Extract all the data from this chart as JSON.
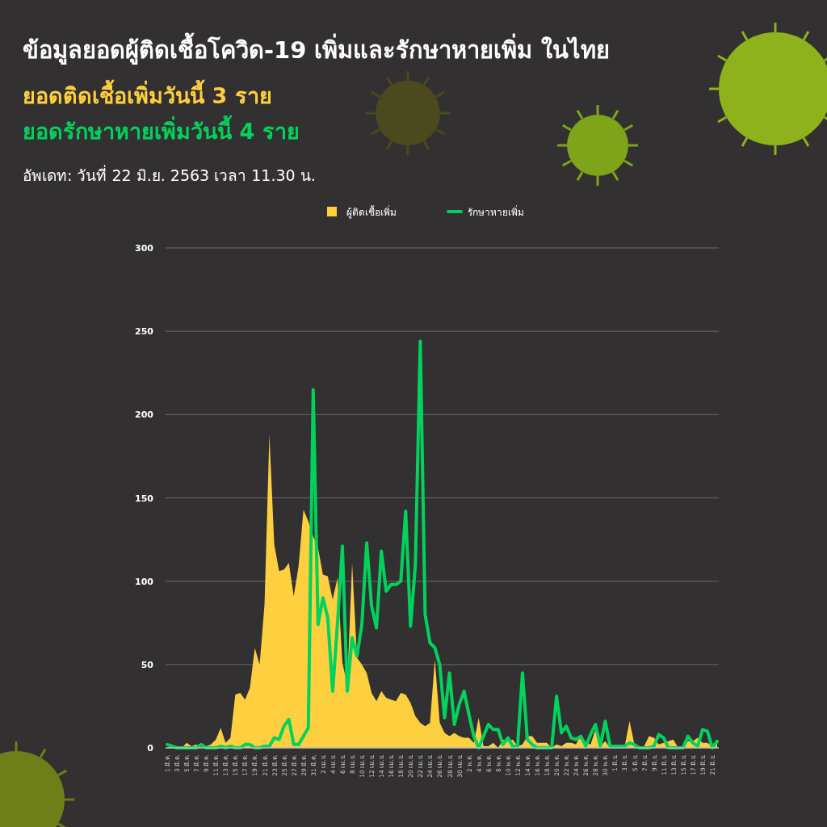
{
  "chart_data": {
    "type": "area",
    "title": "ข้อมูลยอดผู้ติดเชื้อโควิด-19 เพิ่มและรักษาหายเพิ่ม ในไทย",
    "subtitle": "ยอดติดเชื้อเพิ่มวันนี้ 3 ราย",
    "annotations": [
      "ยอดรักษาหายเพิ่มวันนี้ 4 ราย",
      "อัพเดท: วันที่ 22 มิ.ย. 2563 เวลา 11.30 น."
    ],
    "categories": [
      "1 มี.ค.",
      null,
      "3 มี.ค.",
      null,
      "5 มี.ค.",
      null,
      "7 มี.ค.",
      null,
      "9 มี.ค.",
      null,
      "11 มี.ค.",
      null,
      "13 มี.ค.",
      null,
      "15 มี.ค.",
      null,
      "17 มี.ค.",
      null,
      "19 มี.ค.",
      null,
      "21 มี.ค.",
      null,
      "23 มี.ค.",
      null,
      "25 มี.ค.",
      null,
      "27 มี.ค.",
      null,
      "29 มี.ค.",
      null,
      "31 มี.ค.",
      null,
      "2 เม.ย.",
      null,
      "4 เม.ย.",
      null,
      "6 เม.ย.",
      null,
      "8 เม.ย.",
      null,
      "10 เม.ย.",
      null,
      "12 เม.ย.",
      null,
      "14 เม.ย.",
      null,
      "16 เม.ย.",
      null,
      "18 เม.ย.",
      null,
      "20 เม.ย.",
      null,
      "22 เม.ย.",
      null,
      "24 เม.ย.",
      null,
      "26 เม.ย.",
      null,
      "28 เม.ย.",
      null,
      "30 เม.ย.",
      null,
      "2 พ.ค.",
      null,
      "4 พ.ค.",
      null,
      "6 พ.ค.",
      null,
      "8 พ.ค.",
      null,
      "10 พ.ค.",
      null,
      "12 พ.ค.",
      null,
      "14 พ.ค.",
      null,
      "16 พ.ค.",
      null,
      "18 พ.ค.",
      null,
      "20 พ.ค.",
      null,
      "22 พ.ค.",
      null,
      "24 พ.ค.",
      null,
      "26 พ.ค.",
      null,
      "28 พ.ค.",
      null,
      "30 พ.ค.",
      null,
      "1 มิ.ย.",
      null,
      "3 มิ.ย.",
      null,
      "5 มิ.ย.",
      null,
      "7 มิ.ย.",
      null,
      "9 มิ.ย.",
      null,
      "11 มิ.ย.",
      null,
      "13 มิ.ย.",
      null,
      "15 มิ.ย.",
      null,
      "17 มิ.ย.",
      null,
      "19 มิ.ย.",
      null,
      "21 มิ.ย.",
      null
    ],
    "series": [
      {
        "name": "ผู้ติดเชื้อเพิ่ม",
        "color": "#fecf3e",
        "values": [
          0,
          1,
          0,
          0,
          3,
          1,
          2,
          0,
          1,
          2,
          5,
          12,
          3,
          6,
          32,
          33,
          29,
          36,
          60,
          50,
          86,
          188,
          122,
          106,
          107,
          111,
          91,
          109,
          143,
          136,
          127,
          120,
          104,
          103,
          89,
          102,
          51,
          38,
          111,
          54,
          50,
          45,
          33,
          28,
          34,
          30,
          29,
          28,
          33,
          32,
          27,
          19,
          15,
          13,
          15,
          53,
          15,
          9,
          7,
          9,
          7,
          6,
          6,
          3,
          18,
          1,
          1,
          3,
          0,
          5,
          4,
          5,
          1,
          2,
          7,
          7,
          3,
          3,
          3,
          0,
          2,
          1,
          3,
          3,
          2,
          8,
          3,
          2,
          11,
          1,
          4,
          0,
          1,
          1,
          1,
          16,
          2,
          1,
          1,
          7,
          6,
          2,
          3,
          4,
          5,
          0,
          0,
          4,
          4,
          6,
          3,
          3,
          1,
          3
        ]
      },
      {
        "name": "รักษาหายเพิ่ม",
        "type": "line",
        "color": "#00d25d",
        "values": [
          2,
          1,
          0,
          0,
          0,
          0,
          0,
          2,
          0,
          0,
          0,
          1,
          0,
          1,
          0,
          0,
          2,
          2,
          0,
          0,
          1,
          1,
          6,
          5,
          13,
          17,
          2,
          2,
          7,
          12,
          215,
          74,
          90,
          78,
          34,
          75,
          121,
          34,
          66,
          55,
          74,
          123,
          85,
          72,
          118,
          94,
          98,
          98,
          100,
          142,
          73,
          110,
          244,
          80,
          63,
          60,
          50,
          18,
          45,
          14,
          26,
          34,
          20,
          7,
          0,
          7,
          14,
          11,
          11,
          2,
          6,
          1,
          1,
          45,
          5,
          2,
          0,
          0,
          0,
          0,
          31,
          9,
          13,
          6,
          5,
          7,
          1,
          8,
          14,
          1,
          16,
          1,
          1,
          1,
          1,
          3,
          2,
          0,
          0,
          0,
          1,
          8,
          6,
          0,
          0,
          0,
          0,
          7,
          3,
          1,
          11,
          10,
          0,
          4
        ]
      }
    ],
    "ylim": [
      0,
      300
    ],
    "yticks": [
      0,
      50,
      100,
      150,
      200,
      250,
      300
    ],
    "grid": "y",
    "legend": "top"
  }
}
